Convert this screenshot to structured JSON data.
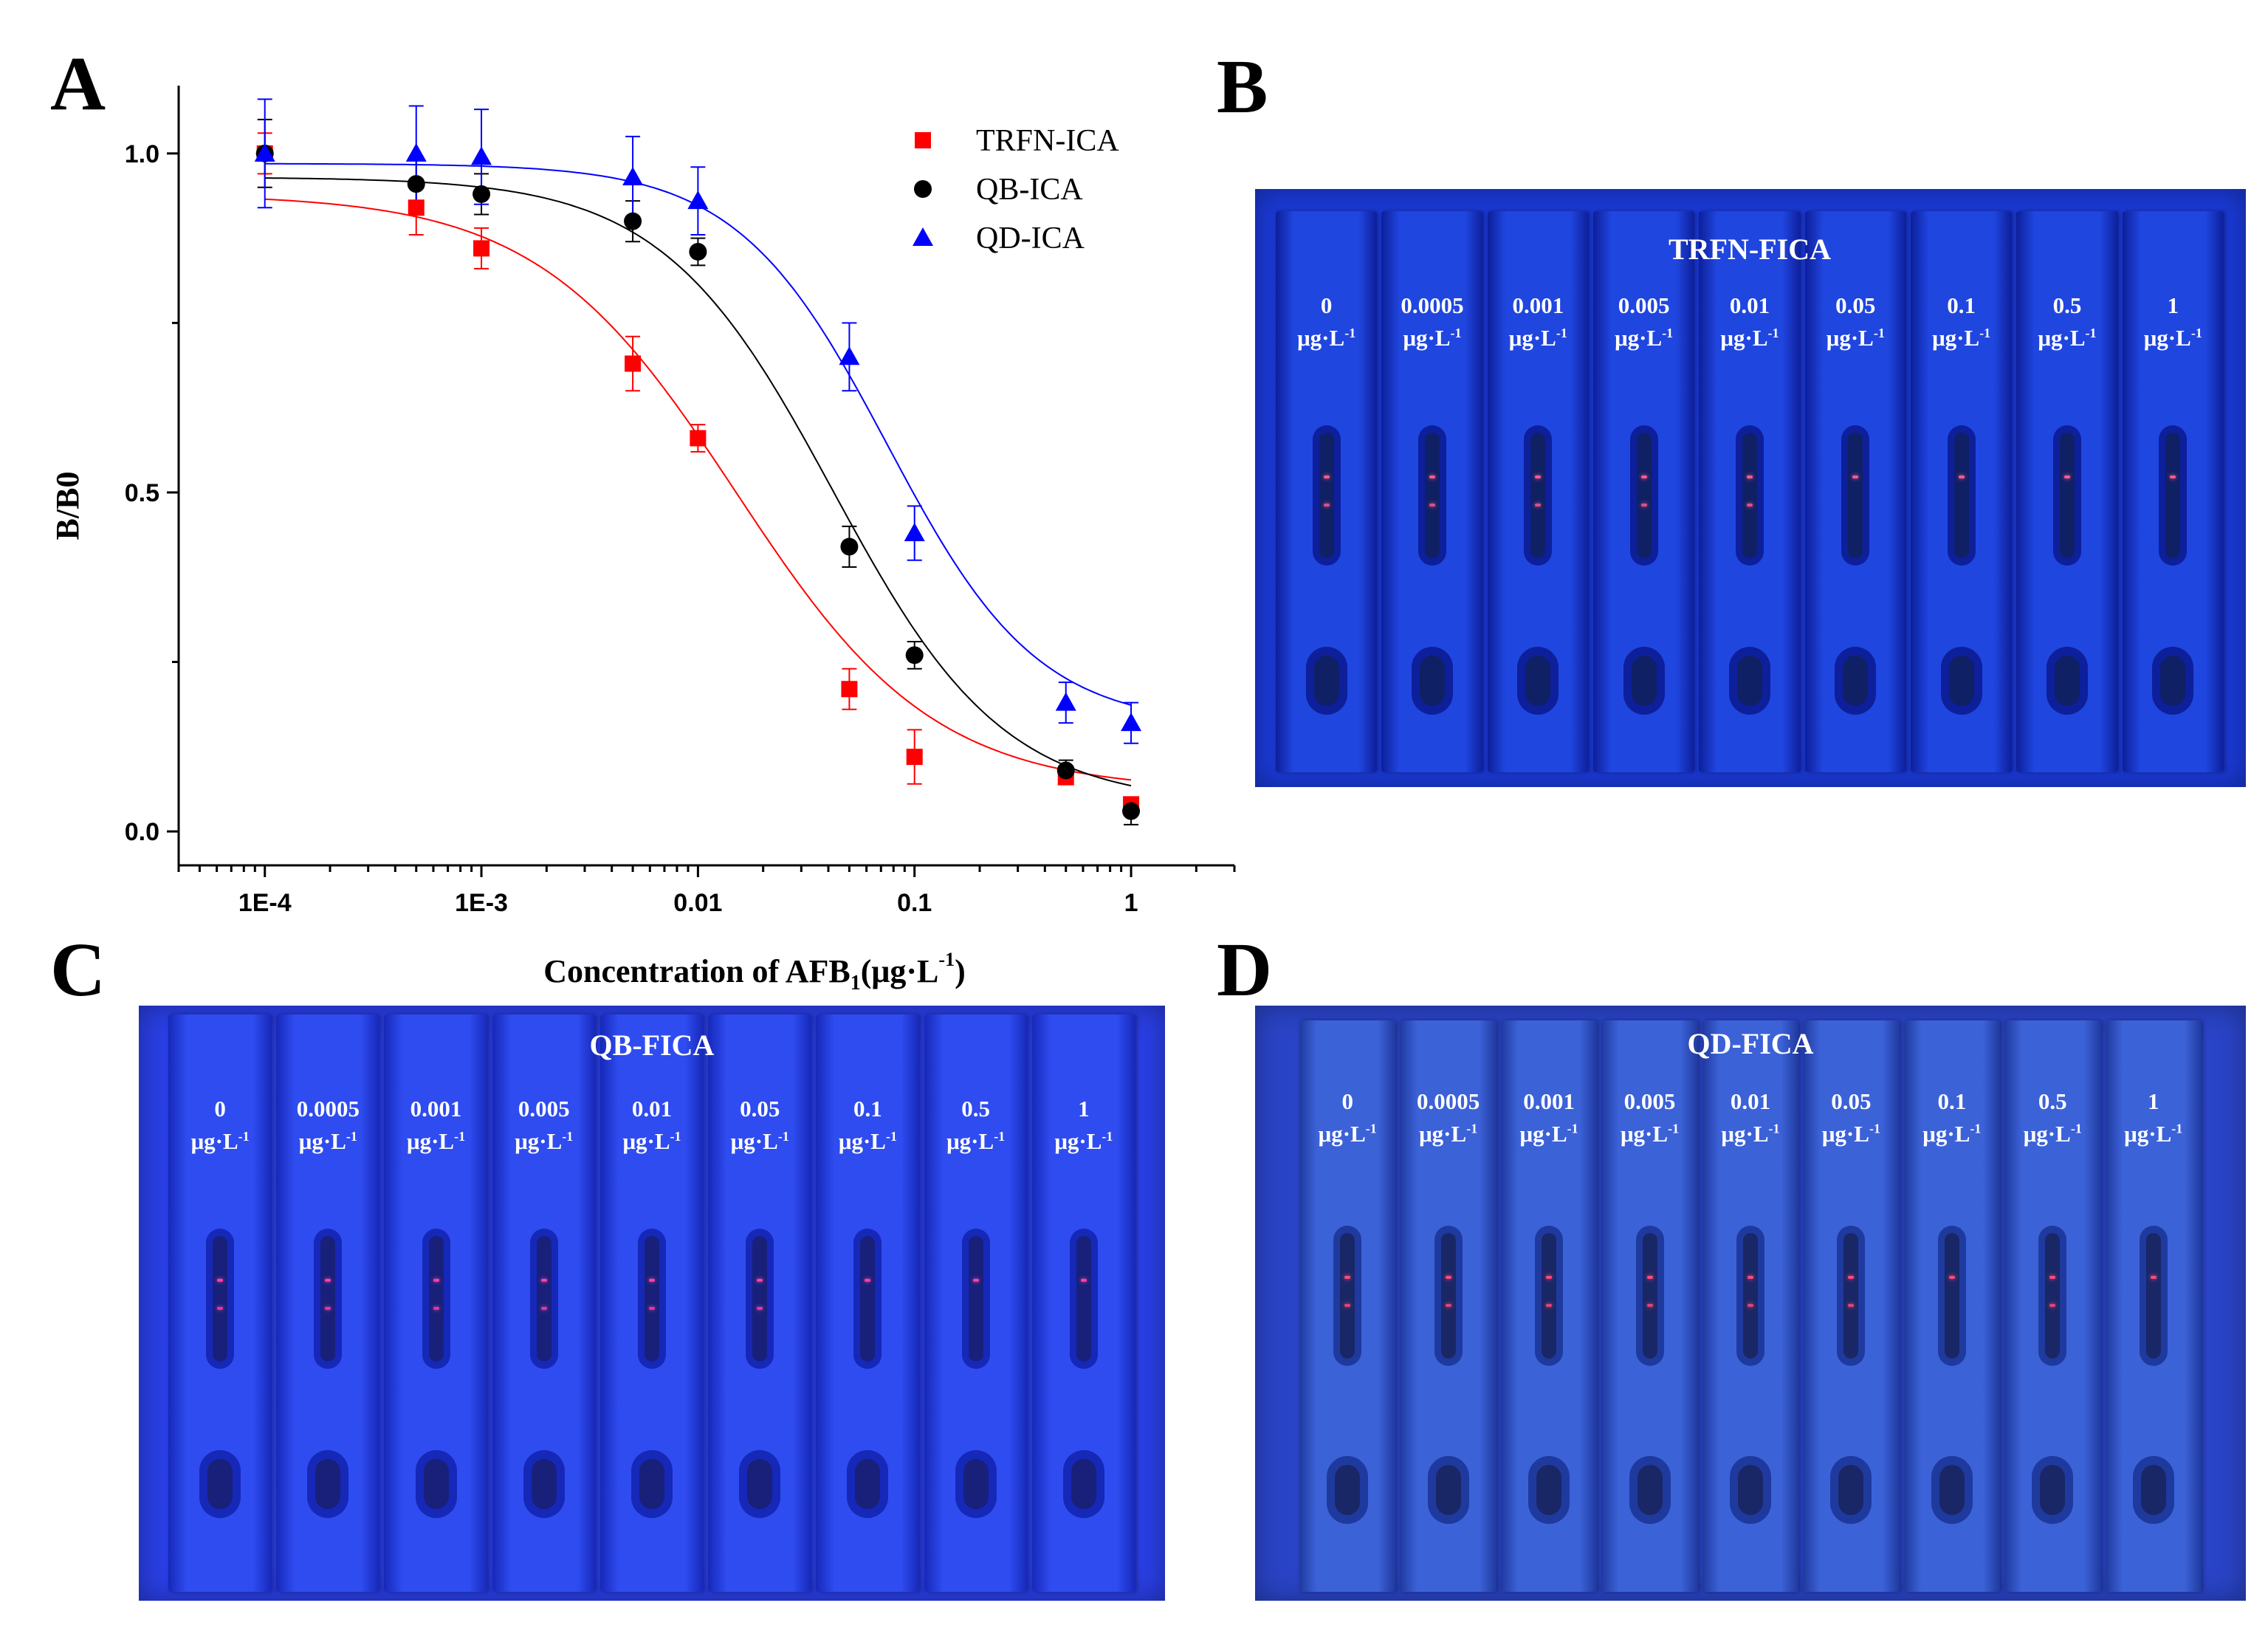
{
  "panel_letters": {
    "a": "A",
    "b": "B",
    "c": "C",
    "d": "D"
  },
  "chart_data": {
    "type": "scatter",
    "title": "",
    "xlabel_main": "Concentration of AFB",
    "xlabel_sub": "1",
    "xlabel_unit_open": "(μg·L",
    "xlabel_unit_sup": "-1",
    "xlabel_unit_close": ")",
    "ylabel": "B/B0",
    "x_scale": "log",
    "xlim": [
      4e-05,
      3
    ],
    "ylim": [
      -0.05,
      1.1
    ],
    "x_ticks": [
      {
        "value": 0.0001,
        "label": "1E-4"
      },
      {
        "value": 0.001,
        "label": "1E-3"
      },
      {
        "value": 0.01,
        "label": "0.01"
      },
      {
        "value": 0.1,
        "label": "0.1"
      },
      {
        "value": 1,
        "label": "1"
      }
    ],
    "y_ticks": [
      {
        "value": 0.0,
        "label": "0.0"
      },
      {
        "value": 0.5,
        "label": "0.5"
      },
      {
        "value": 1.0,
        "label": "1.0"
      }
    ],
    "legend_position": "top-right",
    "series": [
      {
        "name": "TRFN-ICA",
        "marker": "square",
        "color": "#ff0000",
        "x": [
          0.0001,
          0.0005,
          0.001,
          0.005,
          0.01,
          0.05,
          0.1,
          0.5,
          1
        ],
        "y": [
          1.0,
          0.92,
          0.86,
          0.69,
          0.58,
          0.21,
          0.11,
          0.08,
          0.04
        ],
        "err": [
          0.03,
          0.04,
          0.03,
          0.04,
          0.02,
          0.03,
          0.04,
          0.01,
          0.01
        ],
        "fit": {
          "top": 0.94,
          "bottom": 0.06,
          "ic50": 0.015,
          "hill": 0.95
        }
      },
      {
        "name": "QB-ICA",
        "marker": "circle",
        "color": "#000000",
        "x": [
          0.0001,
          0.0005,
          0.001,
          0.005,
          0.01,
          0.05,
          0.1,
          0.5,
          1
        ],
        "y": [
          1.0,
          0.955,
          0.94,
          0.9,
          0.855,
          0.42,
          0.26,
          0.09,
          0.03
        ],
        "err": [
          0.05,
          0.04,
          0.03,
          0.03,
          0.02,
          0.03,
          0.02,
          0.015,
          0.02
        ],
        "fit": {
          "top": 0.965,
          "bottom": 0.04,
          "ic50": 0.042,
          "hill": 1.1
        }
      },
      {
        "name": "QD-ICA",
        "marker": "triangle",
        "color": "#0000ff",
        "x": [
          0.0001,
          0.0005,
          0.001,
          0.005,
          0.01,
          0.05,
          0.1,
          0.5,
          1
        ],
        "y": [
          1.0,
          1.0,
          0.995,
          0.965,
          0.93,
          0.7,
          0.44,
          0.19,
          0.16
        ],
        "err": [
          0.08,
          0.07,
          0.07,
          0.06,
          0.05,
          0.05,
          0.04,
          0.03,
          0.03
        ],
        "fit": {
          "top": 0.985,
          "bottom": 0.155,
          "ic50": 0.075,
          "hill": 1.25
        }
      }
    ]
  },
  "photos": {
    "b": {
      "title": "TRFN-FICA",
      "bg": "#1b3ad8",
      "strip": "#2046e0",
      "frame": "#0d1f9a",
      "window": "#102064",
      "line": "#ff5a8c",
      "strips": [
        {
          "value": "0",
          "unit": "μg·L",
          "sup": "-1",
          "lines": 2
        },
        {
          "value": "0.0005",
          "unit": "μg·L",
          "sup": "-1",
          "lines": 2
        },
        {
          "value": "0.001",
          "unit": "μg·L",
          "sup": "-1",
          "lines": 2
        },
        {
          "value": "0.005",
          "unit": "μg·L",
          "sup": "-1",
          "lines": 2
        },
        {
          "value": "0.01",
          "unit": "μg·L",
          "sup": "-1",
          "lines": 2
        },
        {
          "value": "0.05",
          "unit": "μg·L",
          "sup": "-1",
          "lines": 1
        },
        {
          "value": "0.1",
          "unit": "μg·L",
          "sup": "-1",
          "lines": 1
        },
        {
          "value": "0.5",
          "unit": "μg·L",
          "sup": "-1",
          "lines": 1
        },
        {
          "value": "1",
          "unit": "μg·L",
          "sup": "-1",
          "lines": 1
        }
      ]
    },
    "c": {
      "title": "QB-FICA",
      "bg": "#2a3fe6",
      "strip": "#2f4cf0",
      "frame": "#1628b8",
      "window": "#18207a",
      "line": "#ff3fa0",
      "strips": [
        {
          "value": "0",
          "unit": "μg·L",
          "sup": "-1",
          "lines": 2
        },
        {
          "value": "0.0005",
          "unit": "μg·L",
          "sup": "-1",
          "lines": 2
        },
        {
          "value": "0.001",
          "unit": "μg·L",
          "sup": "-1",
          "lines": 2
        },
        {
          "value": "0.005",
          "unit": "μg·L",
          "sup": "-1",
          "lines": 2
        },
        {
          "value": "0.01",
          "unit": "μg·L",
          "sup": "-1",
          "lines": 2
        },
        {
          "value": "0.05",
          "unit": "μg·L",
          "sup": "-1",
          "lines": 2
        },
        {
          "value": "0.1",
          "unit": "μg·L",
          "sup": "-1",
          "lines": 1
        },
        {
          "value": "0.5",
          "unit": "μg·L",
          "sup": "-1",
          "lines": 1
        },
        {
          "value": "1",
          "unit": "μg·L",
          "sup": "-1",
          "lines": 1
        }
      ]
    },
    "d": {
      "title": "QD-FICA",
      "bg": "#2a44c8",
      "strip": "#3c62d8",
      "frame": "#1f3a9e",
      "window": "#1a2766",
      "line": "#ff4a7a",
      "strips": [
        {
          "value": "0",
          "unit": "μg·L",
          "sup": "-1",
          "lines": 2
        },
        {
          "value": "0.0005",
          "unit": "μg·L",
          "sup": "-1",
          "lines": 2
        },
        {
          "value": "0.001",
          "unit": "μg·L",
          "sup": "-1",
          "lines": 2
        },
        {
          "value": "0.005",
          "unit": "μg·L",
          "sup": "-1",
          "lines": 2
        },
        {
          "value": "0.01",
          "unit": "μg·L",
          "sup": "-1",
          "lines": 2
        },
        {
          "value": "0.05",
          "unit": "μg·L",
          "sup": "-1",
          "lines": 2
        },
        {
          "value": "0.1",
          "unit": "μg·L",
          "sup": "-1",
          "lines": 1
        },
        {
          "value": "0.5",
          "unit": "μg·L",
          "sup": "-1",
          "lines": 2
        },
        {
          "value": "1",
          "unit": "μg·L",
          "sup": "-1",
          "lines": 1
        }
      ]
    }
  }
}
